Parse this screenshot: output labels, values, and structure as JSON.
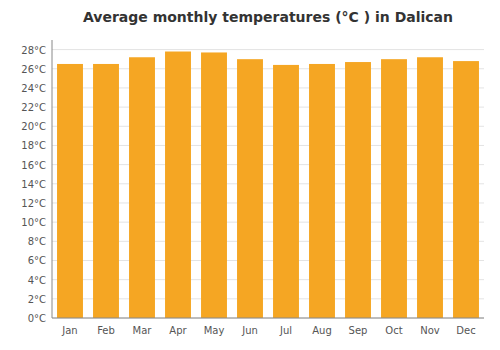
{
  "chart_data": {
    "type": "bar",
    "title": "Average monthly temperatures (°C ) in Dalican",
    "categories": [
      "Jan",
      "Feb",
      "Mar",
      "Apr",
      "May",
      "Jun",
      "Jul",
      "Aug",
      "Sep",
      "Oct",
      "Nov",
      "Dec"
    ],
    "values": [
      26.5,
      26.5,
      27.2,
      27.8,
      27.7,
      27.0,
      26.4,
      26.5,
      26.7,
      27.0,
      27.2,
      26.8
    ],
    "color": "#F5A623",
    "ylim": [
      0,
      29
    ],
    "yticks": [
      {
        "value": 0,
        "label": "0°C"
      },
      {
        "value": 2,
        "label": "2°C"
      },
      {
        "value": 4,
        "label": "4°C"
      },
      {
        "value": 6,
        "label": "6°C"
      },
      {
        "value": 8,
        "label": "8°C"
      },
      {
        "value": 10,
        "label": "10°C"
      },
      {
        "value": 12,
        "label": "12°C"
      },
      {
        "value": 14,
        "label": "14°C"
      },
      {
        "value": 16,
        "label": "16°C"
      },
      {
        "value": 18,
        "label": "18°C"
      },
      {
        "value": 20,
        "label": "20°C"
      },
      {
        "value": 22,
        "label": "22°C"
      },
      {
        "value": 24,
        "label": "24°C"
      },
      {
        "value": 26,
        "label": "26°C"
      },
      {
        "value": 28,
        "label": "28°C"
      }
    ],
    "grid": true
  }
}
